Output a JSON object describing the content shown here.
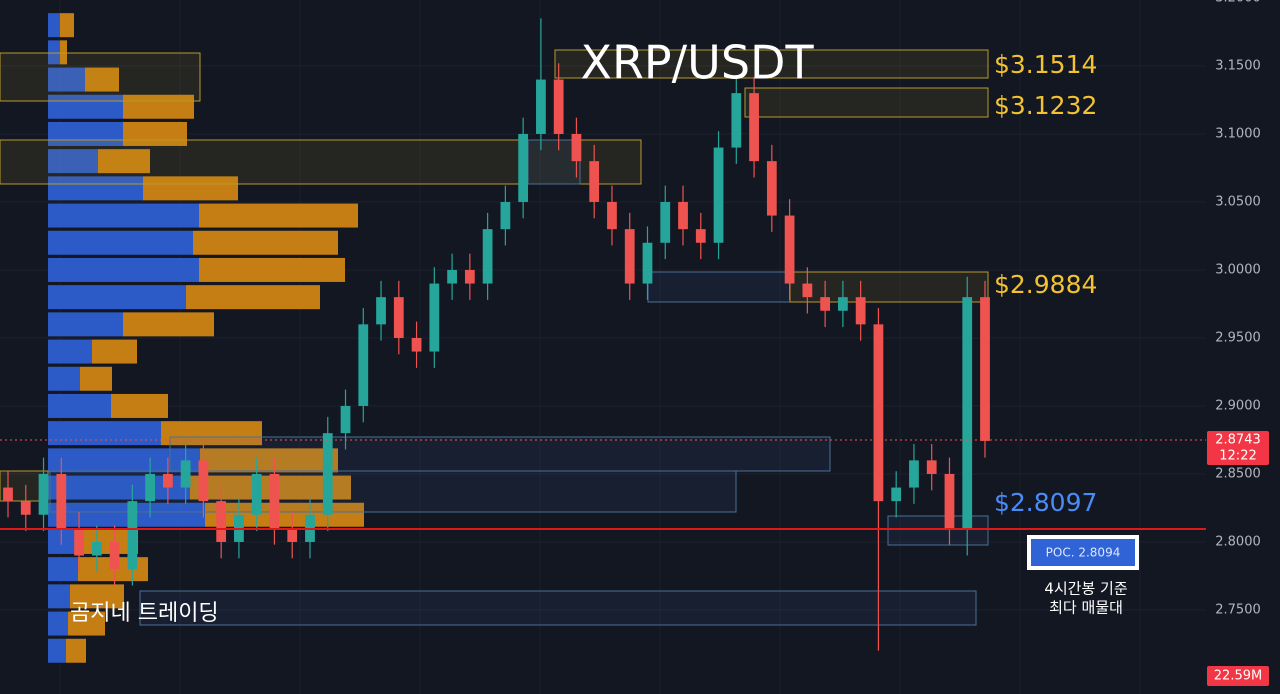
{
  "title": "XRP/USDT",
  "zone_labels": [
    "$3.1514",
    "$3.1232",
    "$2.9884",
    "$2.8097"
  ],
  "poc_label": "POC. 2.8094",
  "note": [
    "4시간봉 기준",
    "최다 매물대"
  ],
  "watermark": "곰지네 트레이딩",
  "price_tag": {
    "price": "2.8743",
    "time": "12:22"
  },
  "volume_tag": "22.59M",
  "chart_data": {
    "type": "candlestick",
    "up_color": "#26a69a",
    "down_color": "#ef5350",
    "ylim": [
      2.6882,
      3.1985
    ],
    "yticks": [
      {
        "value": 2.75,
        "label": "2.7500"
      },
      {
        "value": 2.8,
        "label": "2.8000"
      },
      {
        "value": 2.85,
        "label": "2.8500"
      },
      {
        "value": 2.9,
        "label": "2.9000"
      },
      {
        "value": 2.95,
        "label": "2.9500"
      },
      {
        "value": 3.0,
        "label": "3.0000"
      },
      {
        "value": 3.05,
        "label": "3.0500"
      },
      {
        "value": 3.1,
        "label": "3.1000"
      },
      {
        "value": 3.15,
        "label": "3.1500"
      },
      {
        "value": 3.2,
        "label": "3.2000"
      }
    ],
    "grid": true,
    "open": [
      2.84,
      2.83,
      2.82,
      2.85,
      2.81,
      2.79,
      2.8,
      2.78,
      2.83,
      2.85,
      2.84,
      2.86,
      2.83,
      2.8,
      2.82,
      2.85,
      2.81,
      2.8,
      2.82,
      2.88,
      2.9,
      2.96,
      2.98,
      2.95,
      2.94,
      2.99,
      3.0,
      2.99,
      3.03,
      3.05,
      3.1,
      3.14,
      3.1,
      3.08,
      3.05,
      3.03,
      2.99,
      3.02,
      3.05,
      3.03,
      3.02,
      3.09,
      3.13,
      3.08,
      3.04,
      2.99,
      2.98,
      2.97,
      2.98,
      2.96,
      2.83,
      2.84,
      2.86,
      2.85,
      2.81,
      2.98
    ],
    "high": [
      2.852,
      2.842,
      2.862,
      2.862,
      2.822,
      2.812,
      2.812,
      2.842,
      2.862,
      2.862,
      2.872,
      2.872,
      2.842,
      2.832,
      2.862,
      2.862,
      2.822,
      2.832,
      2.892,
      2.912,
      2.972,
      2.992,
      2.992,
      2.962,
      3.002,
      3.012,
      3.012,
      3.042,
      3.062,
      3.112,
      3.185,
      3.152,
      3.112,
      3.092,
      3.062,
      3.042,
      3.032,
      3.062,
      3.062,
      3.042,
      3.102,
      3.142,
      3.142,
      3.092,
      3.052,
      3.002,
      2.992,
      2.992,
      2.992,
      2.972,
      2.852,
      2.872,
      2.872,
      2.862,
      2.995,
      2.992
    ],
    "low": [
      2.818,
      2.808,
      2.808,
      2.798,
      2.778,
      2.778,
      2.768,
      2.768,
      2.818,
      2.828,
      2.828,
      2.818,
      2.788,
      2.788,
      2.808,
      2.798,
      2.788,
      2.788,
      2.808,
      2.868,
      2.888,
      2.948,
      2.938,
      2.928,
      2.928,
      2.978,
      2.978,
      2.978,
      3.018,
      3.038,
      3.088,
      3.088,
      3.068,
      3.038,
      3.018,
      2.978,
      2.978,
      3.008,
      3.018,
      3.008,
      3.008,
      3.078,
      3.068,
      3.028,
      2.978,
      2.968,
      2.958,
      2.958,
      2.948,
      2.72,
      2.818,
      2.828,
      2.838,
      2.798,
      2.79,
      2.862
    ],
    "close": [
      2.83,
      2.82,
      2.85,
      2.81,
      2.79,
      2.8,
      2.78,
      2.83,
      2.85,
      2.84,
      2.86,
      2.83,
      2.8,
      2.82,
      2.85,
      2.81,
      2.8,
      2.82,
      2.88,
      2.9,
      2.96,
      2.98,
      2.95,
      2.94,
      2.99,
      3.0,
      2.99,
      3.03,
      3.05,
      3.1,
      3.14,
      3.1,
      3.08,
      3.05,
      3.03,
      2.99,
      3.02,
      3.05,
      3.03,
      3.02,
      3.09,
      3.13,
      3.08,
      3.04,
      2.99,
      2.98,
      2.97,
      2.98,
      2.96,
      2.83,
      2.84,
      2.86,
      2.85,
      2.81,
      2.98,
      2.8743
    ]
  },
  "volume_profile": {
    "buy_color": "#2f62d9",
    "sell_color": "#d98a12",
    "levels": [
      3.18,
      3.16,
      3.14,
      3.12,
      3.1,
      3.08,
      3.06,
      3.04,
      3.02,
      3.0,
      2.98,
      2.96,
      2.94,
      2.92,
      2.9,
      2.88,
      2.86,
      2.84,
      2.82,
      2.8,
      2.78,
      2.76,
      2.74,
      2.72
    ],
    "buy": [
      12,
      12,
      37,
      75,
      75,
      50,
      95,
      151,
      145,
      151,
      138,
      75,
      44,
      32,
      63,
      113,
      152,
      142,
      157,
      30,
      30,
      22,
      20,
      18
    ],
    "sell": [
      14,
      7,
      34,
      71,
      64,
      52,
      95,
      159,
      145,
      146,
      134,
      91,
      45,
      32,
      57,
      101,
      138,
      161,
      159,
      60,
      70,
      54,
      37,
      20
    ]
  }
}
